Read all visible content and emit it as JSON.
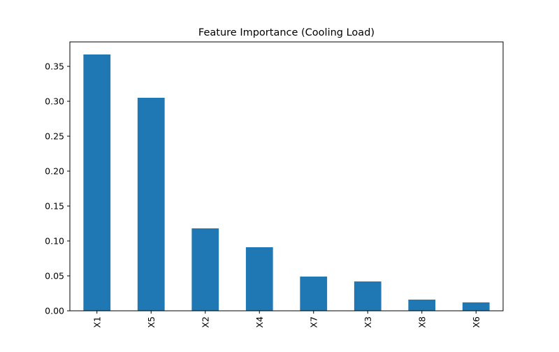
{
  "chart_data": {
    "type": "bar",
    "title": "Feature Importance (Cooling Load)",
    "xlabel": "",
    "ylabel": "",
    "categories": [
      "X1",
      "X5",
      "X2",
      "X4",
      "X7",
      "X3",
      "X8",
      "X6"
    ],
    "values": [
      0.367,
      0.305,
      0.118,
      0.091,
      0.049,
      0.042,
      0.016,
      0.012
    ],
    "ylim": [
      0,
      0.385
    ],
    "yticks": [
      0.0,
      0.05,
      0.1,
      0.15,
      0.2,
      0.25,
      0.3,
      0.35
    ],
    "ytick_labels": [
      "0.00",
      "0.05",
      "0.10",
      "0.15",
      "0.20",
      "0.25",
      "0.30",
      "0.35"
    ],
    "grid": false,
    "legend": "none",
    "bar_color": "#1f77b4"
  }
}
